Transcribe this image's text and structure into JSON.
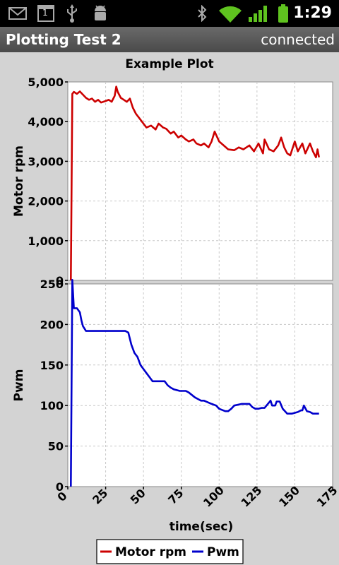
{
  "status_bar": {
    "time": "1:29",
    "icons": [
      "gmail-icon",
      "calendar-icon",
      "usb-icon",
      "android-debug-icon",
      "bluetooth-icon",
      "wifi-icon",
      "signal-icon",
      "battery-icon"
    ],
    "calendar_day": "1"
  },
  "app": {
    "title": "Plotting Test 2",
    "status": "connected"
  },
  "colors": {
    "motor_rpm": "#cc0000",
    "pwm": "#0000cc",
    "status_bar": "#000000",
    "title_bar": "#555555"
  },
  "chart_data": {
    "type": "line",
    "title": "Example Plot",
    "xlabel": "time(sec)",
    "xlim": [
      0,
      175
    ],
    "x_ticks": [
      "0",
      "25",
      "50",
      "75",
      "100",
      "125",
      "150",
      "175"
    ],
    "x_tick_values": [
      0,
      25,
      50,
      75,
      100,
      125,
      150,
      175
    ],
    "grid": true,
    "legend": {
      "placement": "bottom-center",
      "entries": [
        "Motor rpm",
        "Pwm"
      ]
    },
    "subplots": [
      {
        "ylabel": "Motor rpm",
        "ylim": [
          0,
          5000
        ],
        "y_ticks": [
          "0",
          "1,000",
          "2,000",
          "3,000",
          "4,000",
          "5,000"
        ],
        "y_tick_values": [
          0,
          1000,
          2000,
          3000,
          4000,
          5000
        ],
        "series": [
          {
            "name": "Motor rpm",
            "color": "#cc0000",
            "x": [
              2,
              3,
              4,
              6,
              8,
              10,
              12,
              14,
              16,
              18,
              20,
              22,
              25,
              27,
              29,
              31,
              32,
              33,
              35,
              37,
              39,
              41,
              43,
              45,
              47,
              50,
              52,
              55,
              58,
              60,
              63,
              65,
              68,
              70,
              73,
              75,
              78,
              80,
              83,
              85,
              88,
              90,
              93,
              95,
              97,
              100,
              103,
              106,
              110,
              113,
              116,
              120,
              123,
              126,
              129,
              130,
              133,
              136,
              139,
              141,
              143,
              145,
              147,
              150,
              152,
              155,
              157,
              160,
              162,
              164,
              165,
              166
            ],
            "y": [
              0,
              4700,
              4750,
              4700,
              4760,
              4680,
              4600,
              4550,
              4580,
              4500,
              4550,
              4480,
              4520,
              4550,
              4500,
              4650,
              4880,
              4750,
              4600,
              4550,
              4500,
              4580,
              4350,
              4200,
              4100,
              3950,
              3850,
              3900,
              3800,
              3950,
              3850,
              3820,
              3700,
              3750,
              3600,
              3650,
              3550,
              3500,
              3550,
              3450,
              3400,
              3450,
              3350,
              3500,
              3750,
              3500,
              3400,
              3300,
              3280,
              3350,
              3300,
              3400,
              3250,
              3450,
              3200,
              3550,
              3300,
              3250,
              3400,
              3600,
              3350,
              3200,
              3150,
              3500,
              3250,
              3450,
              3200,
              3450,
              3250,
              3100,
              3300,
              3100
            ]
          }
        ]
      },
      {
        "ylabel": "Pwm",
        "ylim": [
          0,
          250
        ],
        "y_ticks": [
          "0",
          "50",
          "100",
          "150",
          "200",
          "250"
        ],
        "y_tick_values": [
          0,
          50,
          100,
          150,
          200,
          250
        ],
        "series": [
          {
            "name": "Pwm",
            "color": "#0000cc",
            "x": [
              2,
              3,
              4,
              6,
              8,
              9,
              10,
              12,
              14,
              30,
              38,
              40,
              42,
              44,
              46,
              48,
              50,
              52,
              54,
              56,
              60,
              64,
              66,
              68,
              70,
              74,
              76,
              78,
              80,
              84,
              86,
              88,
              90,
              95,
              98,
              100,
              104,
              106,
              108,
              110,
              115,
              120,
              122,
              124,
              126,
              128,
              130,
              134,
              135,
              137,
              138,
              140,
              142,
              145,
              148,
              152,
              154,
              155,
              156,
              158,
              160,
              162,
              166
            ],
            "y": [
              0,
              255,
              220,
              220,
              215,
              205,
              198,
              192,
              192,
              192,
              192,
              190,
              175,
              165,
              160,
              150,
              145,
              140,
              135,
              130,
              130,
              130,
              125,
              122,
              120,
              118,
              118,
              118,
              116,
              110,
              108,
              106,
              106,
              102,
              100,
              96,
              93,
              93,
              96,
              100,
              102,
              102,
              98,
              96,
              96,
              97,
              97,
              106,
              100,
              100,
              105,
              105,
              96,
              90,
              90,
              92,
              94,
              94,
              100,
              93,
              92,
              90,
              90
            ]
          }
        ]
      }
    ]
  }
}
